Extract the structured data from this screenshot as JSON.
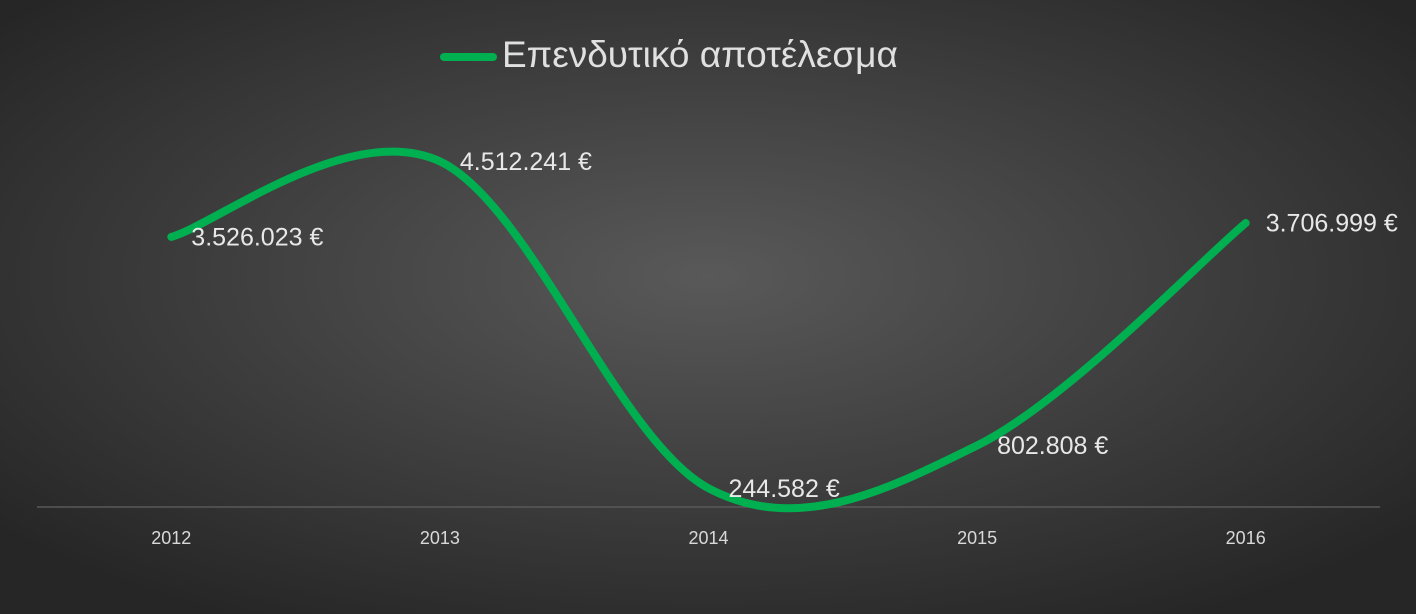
{
  "chart_data": {
    "type": "line",
    "categories": [
      "2012",
      "2013",
      "2014",
      "2015",
      "2016"
    ],
    "series": [
      {
        "name": "Επενδυτικό αποτέλεσμα",
        "color": "#00b050",
        "values": [
          3526023,
          4512241,
          244582,
          802808,
          3706999
        ],
        "value_labels": [
          "3.526.023 €",
          "4.512.241 €",
          "244.582 €",
          "802.808 €",
          "3.706.999 €"
        ]
      }
    ],
    "ylim": [
      0,
      5000000
    ],
    "smooth": true,
    "legend": "top",
    "grid": false
  }
}
